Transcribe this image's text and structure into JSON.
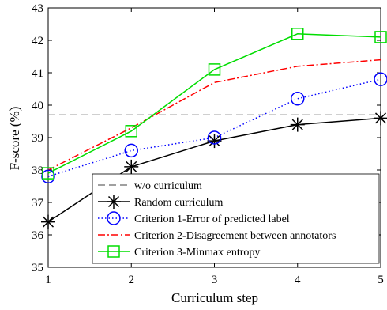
{
  "chart_data": {
    "type": "line",
    "title": "",
    "xlabel": "Curriculum step",
    "ylabel": "F-score (%)",
    "x": [
      1,
      2,
      3,
      4,
      5
    ],
    "xlim": [
      1,
      5
    ],
    "ylim": [
      35,
      43
    ],
    "xticks": [
      "1",
      "2",
      "3",
      "4",
      "5"
    ],
    "yticks": [
      "35",
      "36",
      "37",
      "38",
      "39",
      "40",
      "41",
      "42",
      "43"
    ],
    "grid": false,
    "legend_position": "bottom-right",
    "baseline": {
      "name": "w/o curriculum",
      "value": 39.7,
      "color": "#808080",
      "style": "dashed"
    },
    "series": [
      {
        "name": "Random curriculum",
        "values": [
          36.4,
          38.1,
          38.9,
          39.4,
          39.6
        ],
        "color": "#000000",
        "style": "solid",
        "marker": "star"
      },
      {
        "name": "Criterion 1-Error of predicted label",
        "values": [
          37.8,
          38.6,
          39.0,
          40.2,
          40.8
        ],
        "color": "#0000ff",
        "style": "dotted",
        "marker": "circle"
      },
      {
        "name": "Criterion 2-Disagreement between annotators",
        "values": [
          38.0,
          39.3,
          40.7,
          41.2,
          41.4
        ],
        "color": "#ff0000",
        "style": "dashdot",
        "marker": "none"
      },
      {
        "name": "Criterion 3-Minmax entropy",
        "values": [
          37.9,
          39.2,
          41.1,
          42.2,
          42.1
        ],
        "color": "#00dd00",
        "style": "solid",
        "marker": "square"
      }
    ]
  }
}
